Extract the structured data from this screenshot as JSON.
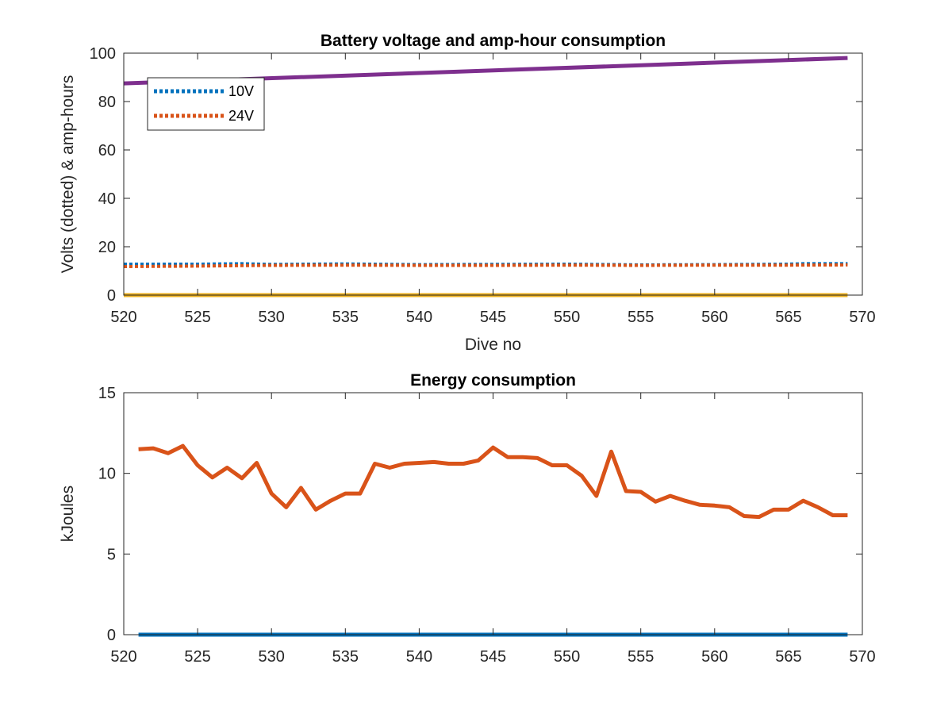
{
  "chart_data": [
    {
      "type": "line",
      "title": "Battery voltage and amp-hour consumption",
      "xlabel": "Dive no",
      "ylabel": "Volts (dotted) & amp-hours",
      "xlim": [
        520,
        570
      ],
      "ylim": [
        0,
        100
      ],
      "xticks": [
        520,
        525,
        530,
        535,
        540,
        545,
        550,
        555,
        560,
        565,
        570
      ],
      "yticks": [
        0,
        20,
        40,
        60,
        80,
        100
      ],
      "grid": false,
      "legend_position": "top-left",
      "series": [
        {
          "name": "10V",
          "style": "dotted",
          "color": "#0072BD",
          "in_legend": true,
          "x": [
            520,
            525,
            528,
            530,
            535,
            540,
            545,
            550,
            555,
            560,
            565,
            566,
            569
          ],
          "y": [
            12.8,
            12.8,
            13.0,
            12.7,
            12.9,
            12.6,
            12.7,
            12.8,
            12.5,
            12.6,
            12.8,
            13.0,
            13.0
          ]
        },
        {
          "name": "24V",
          "style": "dotted",
          "color": "#D95319",
          "in_legend": true,
          "x": [
            520,
            525,
            528,
            530,
            535,
            540,
            545,
            550,
            555,
            560,
            565,
            569
          ],
          "y": [
            11.8,
            12.0,
            12.2,
            12.3,
            12.4,
            12.3,
            12.3,
            12.4,
            12.3,
            12.4,
            12.4,
            12.5
          ]
        },
        {
          "style": "solid",
          "color": "#7E2F8E",
          "in_legend": false,
          "x": [
            520,
            569
          ],
          "y": [
            87.5,
            98.0
          ]
        },
        {
          "style": "solid",
          "color": "#EDB120",
          "in_legend": false,
          "x": [
            520,
            569
          ],
          "y": [
            0,
            0
          ]
        }
      ]
    },
    {
      "type": "line",
      "title": "Energy consumption",
      "xlabel": "",
      "ylabel": "kJoules",
      "xlim": [
        520,
        570
      ],
      "ylim": [
        0,
        15
      ],
      "xticks": [
        520,
        525,
        530,
        535,
        540,
        545,
        550,
        555,
        560,
        565,
        570
      ],
      "yticks": [
        0,
        5,
        10,
        15
      ],
      "grid": false,
      "series": [
        {
          "style": "solid",
          "color": "#D95319",
          "x": [
            521,
            522,
            523,
            524,
            525,
            526,
            527,
            528,
            529,
            530,
            531,
            532,
            533,
            534,
            535,
            536,
            537,
            538,
            539,
            540,
            541,
            542,
            543,
            544,
            545,
            546,
            547,
            548,
            549,
            550,
            551,
            552,
            553,
            554,
            555,
            556,
            557,
            558,
            559,
            560,
            561,
            562,
            563,
            564,
            565,
            566,
            567,
            568,
            569
          ],
          "y": [
            11.5,
            11.55,
            11.25,
            11.7,
            10.5,
            9.75,
            10.35,
            9.7,
            10.65,
            8.75,
            7.9,
            9.1,
            7.75,
            8.3,
            8.75,
            8.75,
            10.6,
            10.35,
            10.6,
            10.65,
            10.7,
            10.6,
            10.6,
            10.8,
            11.6,
            11.0,
            11.0,
            10.95,
            10.5,
            10.5,
            9.85,
            8.6,
            11.35,
            8.9,
            8.85,
            8.25,
            8.6,
            8.3,
            8.05,
            8.0,
            7.9,
            7.35,
            7.3,
            7.75,
            7.75,
            8.3,
            7.9,
            7.4,
            7.4
          ]
        },
        {
          "style": "solid",
          "color": "#0072BD",
          "x": [
            521,
            569
          ],
          "y": [
            0,
            0
          ]
        }
      ]
    }
  ]
}
